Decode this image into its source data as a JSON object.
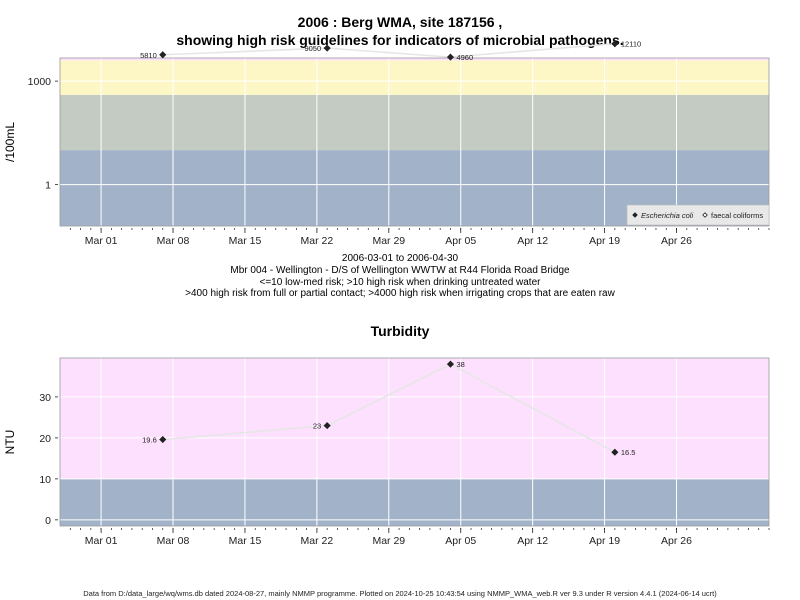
{
  "header": {
    "title_line1": "2006 : Berg WMA, site 187156 ,",
    "title_line2": "showing high risk guidelines for indicators of microbial pathogens."
  },
  "caption": {
    "line1": "2006-03-01 to 2006-04-30",
    "line2": "Mbr 004 - Wellington - D/S of Wellington WWTW at R44 Florida Road Bridge",
    "line3": "<=10 low-med risk; >10 high risk when drinking untreated water",
    "line4": ">400 high risk from full or partial contact; >4000 high risk when irrigating crops that are eaten raw"
  },
  "footer": {
    "text": "Data from D:/data_large/wq/wms.db dated 2024-08-27, mainly NMMP programme. Plotted on 2024-10-25 10:43:54 using NMMP_WMA_web.R ver 9.3 under R version 4.4.1 (2024-06-14 ucrt)"
  },
  "chart_data": [
    {
      "type": "scatter",
      "title": "",
      "ylabel": "/100mL",
      "xlabel": "",
      "y_scale": "log",
      "xlim": [
        "2006-02-25",
        "2006-05-05"
      ],
      "ylim_log10": [
        -1.2,
        3.67
      ],
      "x_ticks": [
        {
          "date": "2006-03-01",
          "label": "Mar 01"
        },
        {
          "date": "2006-03-08",
          "label": "Mar 08"
        },
        {
          "date": "2006-03-15",
          "label": "Mar 15"
        },
        {
          "date": "2006-03-22",
          "label": "Mar 22"
        },
        {
          "date": "2006-03-29",
          "label": "Mar 29"
        },
        {
          "date": "2006-04-05",
          "label": "Apr 05"
        },
        {
          "date": "2006-04-12",
          "label": "Apr 12"
        },
        {
          "date": "2006-04-19",
          "label": "Apr 19"
        },
        {
          "date": "2006-04-26",
          "label": "Apr 26"
        }
      ],
      "y_ticks": [
        {
          "value": 1,
          "label": "1"
        },
        {
          "value": 1000,
          "label": "1000"
        }
      ],
      "risk_bands": [
        {
          "from": 0.06,
          "to": 10,
          "color": "#a2b3c9"
        },
        {
          "from": 10,
          "to": 400,
          "color": "#c3cbc2"
        },
        {
          "from": 400,
          "to": 4000,
          "color": "#fdf7c6"
        },
        {
          "from": 4000,
          "to": 4700,
          "color": "#fde0fd"
        }
      ],
      "grid": true,
      "legend_position": "bottom-right",
      "series": [
        {
          "name": "Escherichia coli",
          "marker": "filled-diamond",
          "points": [
            {
              "x": "2006-03-07",
              "y": 5810,
              "label": "5810"
            },
            {
              "x": "2006-03-23",
              "y": 9050,
              "label": "9050"
            },
            {
              "x": "2006-04-04",
              "y": 4960,
              "label": "4960"
            },
            {
              "x": "2006-04-20",
              "y": 12110,
              "label": "12110"
            }
          ]
        },
        {
          "name": "faecal coliforms",
          "marker": "open-diamond",
          "points": []
        }
      ]
    },
    {
      "type": "scatter",
      "title": "Turbidity",
      "ylabel": "NTU",
      "xlabel": "",
      "xlim": [
        "2006-02-25",
        "2006-05-05"
      ],
      "ylim": [
        -1.5,
        39.5
      ],
      "x_ticks": [
        {
          "date": "2006-03-01",
          "label": "Mar 01"
        },
        {
          "date": "2006-03-08",
          "label": "Mar 08"
        },
        {
          "date": "2006-03-15",
          "label": "Mar 15"
        },
        {
          "date": "2006-03-22",
          "label": "Mar 22"
        },
        {
          "date": "2006-03-29",
          "label": "Mar 29"
        },
        {
          "date": "2006-04-05",
          "label": "Apr 05"
        },
        {
          "date": "2006-04-12",
          "label": "Apr 12"
        },
        {
          "date": "2006-04-19",
          "label": "Apr 19"
        },
        {
          "date": "2006-04-26",
          "label": "Apr 26"
        }
      ],
      "y_ticks": [
        {
          "value": 0,
          "label": "0"
        },
        {
          "value": 10,
          "label": "10"
        },
        {
          "value": 20,
          "label": "20"
        },
        {
          "value": 30,
          "label": "30"
        }
      ],
      "risk_bands": [
        {
          "from": -1.5,
          "to": 10,
          "color": "#a2b3c9"
        },
        {
          "from": 10,
          "to": 39.5,
          "color": "#fde0fd"
        }
      ],
      "grid": true,
      "series": [
        {
          "name": "",
          "marker": "filled-diamond",
          "points": [
            {
              "x": "2006-03-07",
              "y": 19.6,
              "label": "19.6"
            },
            {
              "x": "2006-03-23",
              "y": 23,
              "label": "23"
            },
            {
              "x": "2006-04-04",
              "y": 38,
              "label": "38"
            },
            {
              "x": "2006-04-20",
              "y": 16.5,
              "label": "16.5"
            }
          ]
        }
      ]
    }
  ]
}
